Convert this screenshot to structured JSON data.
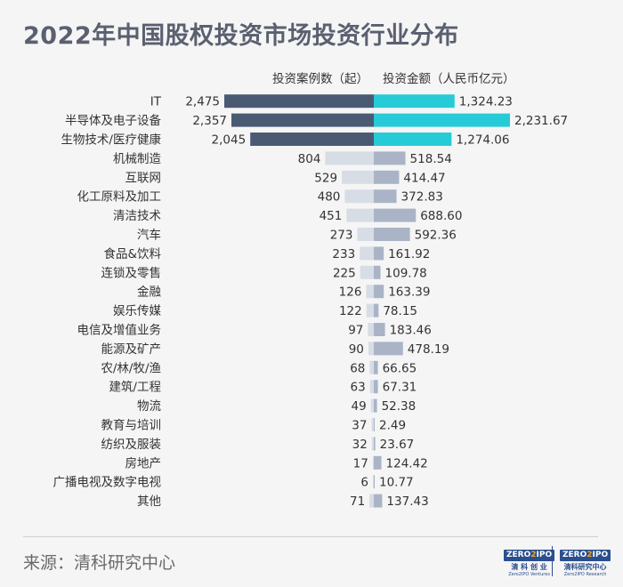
{
  "title": "2022年中国股权投资市场投资行业分布",
  "source": "来源：清科研究中心",
  "logos": {
    "ventures": {
      "badge_left": "ZERO",
      "badge_mid": "2",
      "badge_right": "IPO",
      "cn": "清 科 创 业",
      "en": "Zero2IPO Ventures"
    },
    "research": {
      "badge_left": "ZERO",
      "badge_mid": "2",
      "badge_right": "IPO",
      "cn": "清科研究中心",
      "en": "Zero2IPO Research"
    }
  },
  "colors": {
    "background": "#f5f5f5",
    "count_top3": "#4a5a73",
    "amount_top3": "#27cbd7",
    "count_other": "#d7dde5",
    "amount_other": "#aab4c6",
    "text": "#333333"
  },
  "chart_data": {
    "type": "bar",
    "orientation": "horizontal-diverging",
    "legend_position": "top",
    "highlight_top": 3,
    "categories": [
      "IT",
      "半导体及电子设备",
      "生物技术/医疗健康",
      "机械制造",
      "互联网",
      "化工原料及加工",
      "清洁技术",
      "汽车",
      "食品&饮料",
      "连锁及零售",
      "金融",
      "娱乐传媒",
      "电信及增值业务",
      "能源及矿产",
      "农/林/牧/渔",
      "建筑/工程",
      "物流",
      "教育与培训",
      "纺织及服装",
      "房地产",
      "广播电视及数字电视",
      "其他"
    ],
    "series": [
      {
        "name": "投资案例数（起）",
        "direction": "left",
        "values": [
          2475,
          2357,
          2045,
          804,
          529,
          480,
          451,
          273,
          233,
          225,
          126,
          122,
          97,
          90,
          68,
          63,
          49,
          37,
          32,
          17,
          6,
          71
        ],
        "labels": [
          "2,475",
          "2,357",
          "2,045",
          "804",
          "529",
          "480",
          "451",
          "273",
          "233",
          "225",
          "126",
          "122",
          "97",
          "90",
          "68",
          "63",
          "49",
          "37",
          "32",
          "17",
          "6",
          "71"
        ]
      },
      {
        "name": "投资金额（人民币亿元）",
        "direction": "right",
        "values": [
          1324.23,
          2231.67,
          1274.06,
          518.54,
          414.47,
          372.83,
          688.6,
          592.36,
          161.92,
          109.78,
          163.39,
          78.15,
          183.46,
          478.19,
          66.65,
          67.31,
          52.38,
          2.49,
          23.67,
          124.42,
          10.77,
          137.43
        ],
        "labels": [
          "1,324.23",
          "2,231.67",
          "1,274.06",
          "518.54",
          "414.47",
          "372.83",
          "688.60",
          "592.36",
          "161.92",
          "109.78",
          "163.39",
          "78.15",
          "183.46",
          "478.19",
          "66.65",
          "67.31",
          "52.38",
          "2.49",
          "23.67",
          "124.42",
          "10.77",
          "137.43"
        ]
      }
    ]
  }
}
